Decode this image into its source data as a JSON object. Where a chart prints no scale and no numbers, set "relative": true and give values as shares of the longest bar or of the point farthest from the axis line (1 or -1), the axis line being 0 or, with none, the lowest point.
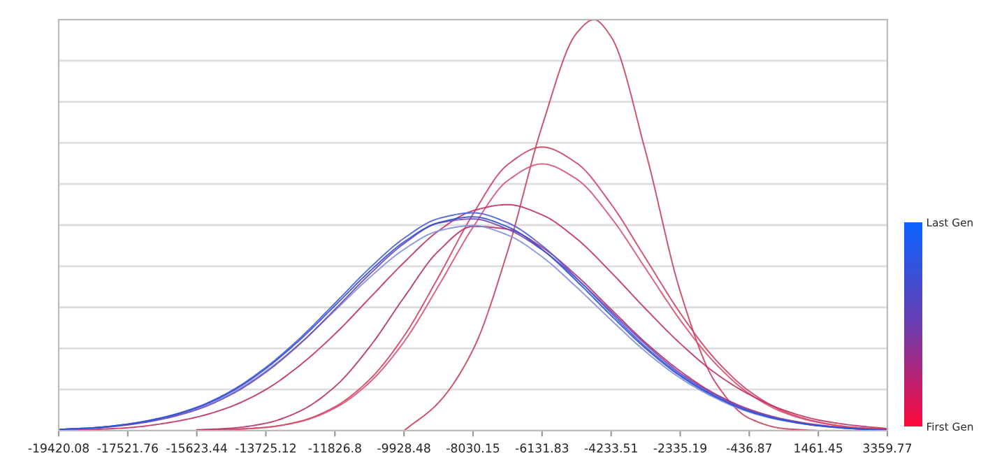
{
  "chart_data": {
    "type": "line",
    "relative": true,
    "grid": "y",
    "tick_labels": "x",
    "marker": "none",
    "line_style": "solid",
    "x": [
      -19420.08,
      -18470.92,
      -17521.76,
      -16572.6,
      -15623.44,
      -14674.28,
      -13725.12,
      -12775.96,
      -11826.8,
      -10877.64,
      -9928.48,
      -8979.32,
      -8030.15,
      -7080.99,
      -6131.83,
      -5182.67,
      -4233.51,
      -3284.35,
      -2335.19,
      -1386.03,
      -436.87,
      512.29,
      1461.45,
      2410.61,
      3359.77
    ],
    "xlim": [
      -19420.08,
      3359.77
    ],
    "xticks": [
      -19420.08,
      -17521.76,
      -15623.44,
      -13725.12,
      -11826.8,
      -9928.48,
      -8030.15,
      -6131.83,
      -4233.51,
      -2335.19,
      -436.87,
      1461.45,
      3359.77
    ],
    "clim": [
      0,
      1
    ],
    "cticks": [
      {
        "value": 0,
        "label": "First Gen"
      },
      {
        "value": 1,
        "label": "Last Gen"
      }
    ],
    "series": [
      {
        "color": "#c8405a",
        "x": [
          -9928.48,
          -8979.32,
          -8030.15,
          -7080.99,
          -6131.83,
          -5182.67,
          -4708.1,
          -4233.51,
          -3284.35,
          -2335.19,
          -1386.03,
          -436.87,
          512.29,
          1461.45
        ],
        "values": [
          0,
          0.068,
          0.197,
          0.436,
          0.741,
          0.967,
          1,
          0.958,
          0.678,
          0.339,
          0.12,
          0.03,
          0.005,
          0
        ]
      },
      {
        "color": "#d04060",
        "values": [
          null,
          null,
          null,
          null,
          0.001,
          0.003,
          0.008,
          0.023,
          0.058,
          0.124,
          0.23,
          0.374,
          0.527,
          0.647,
          0.69,
          0.651,
          0.551,
          0.419,
          0.286,
          0.175,
          0.096,
          0.047,
          0.021,
          0.008,
          0.003
        ]
      },
      {
        "color": "#d85070",
        "values": [
          null,
          null,
          null,
          null,
          0.001,
          0.003,
          0.008,
          0.022,
          0.055,
          0.117,
          0.216,
          0.352,
          0.495,
          0.608,
          0.649,
          0.612,
          0.518,
          0.394,
          0.269,
          0.165,
          0.09,
          0.044,
          0.02,
          0.008,
          0.003
        ]
      },
      {
        "color": "#c03060",
        "values": [
          0.001,
          0.003,
          0.007,
          0.017,
          0.033,
          0.059,
          0.1,
          0.16,
          0.235,
          0.322,
          0.409,
          0.486,
          0.535,
          0.55,
          0.525,
          0.467,
          0.385,
          0.296,
          0.212,
          0.141,
          0.088,
          0.05,
          0.026,
          0.013,
          0.005
        ]
      },
      {
        "color": "#b83068",
        "values": [
          null,
          null,
          null,
          null,
          0.002,
          0.006,
          0.018,
          0.048,
          0.107,
          0.203,
          0.324,
          0.437,
          0.497,
          0.49,
          0.446,
          0.377,
          0.295,
          0.214,
          0.145,
          0.09,
          0.052,
          0.028,
          0.014,
          0.006,
          0.002
        ]
      },
      {
        "color": "#8090e0",
        "values": [
          0.003,
          0.007,
          0.015,
          0.03,
          0.054,
          0.091,
          0.145,
          0.213,
          0.292,
          0.372,
          0.441,
          0.486,
          0.499,
          0.476,
          0.423,
          0.349,
          0.269,
          0.192,
          0.128,
          0.08,
          0.045,
          0.024,
          0.012,
          0.005,
          0.001
        ]
      },
      {
        "color": "#7048b8",
        "values": [
          0.003,
          0.006,
          0.014,
          0.028,
          0.051,
          0.088,
          0.142,
          0.212,
          0.295,
          0.38,
          0.455,
          0.505,
          0.515,
          0.49,
          0.44,
          0.37,
          0.29,
          0.21,
          0.14,
          0.088,
          0.05,
          0.027,
          0.013,
          0.005,
          0.001
        ]
      },
      {
        "color": "#4a5fd8",
        "values": [
          0.003,
          0.007,
          0.016,
          0.032,
          0.057,
          0.097,
          0.154,
          0.226,
          0.31,
          0.395,
          0.468,
          0.516,
          0.53,
          0.506,
          0.45,
          0.371,
          0.286,
          0.204,
          0.136,
          0.085,
          0.048,
          0.026,
          0.012,
          0.005,
          0.001
        ]
      },
      {
        "color": "#3050d0",
        "values": [
          0.003,
          0.007,
          0.016,
          0.031,
          0.056,
          0.095,
          0.151,
          0.222,
          0.304,
          0.387,
          0.459,
          0.506,
          0.52,
          0.496,
          0.441,
          0.364,
          0.28,
          0.2,
          0.133,
          0.083,
          0.047,
          0.025,
          0.012,
          0.005,
          0.001
        ]
      }
    ]
  }
}
